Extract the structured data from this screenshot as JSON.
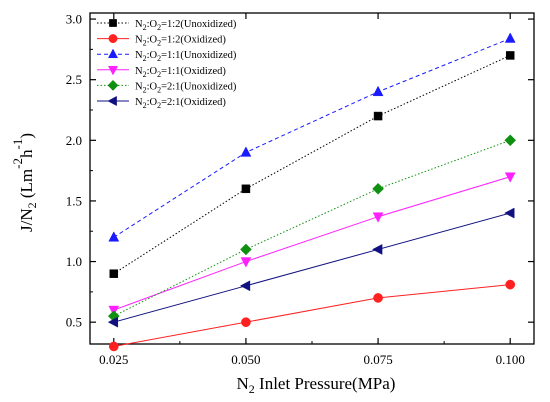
{
  "chart_data": {
    "type": "line",
    "x": [
      0.025,
      0.05,
      0.075,
      0.1
    ],
    "x_tick_labels": [
      "0.025",
      "0.050",
      "0.075",
      "0.100"
    ],
    "y_tick_labels": [
      "0.5",
      "1.0",
      "1.5",
      "2.0",
      "2.5",
      "3.0"
    ],
    "y_ticks": [
      0.5,
      1.0,
      1.5,
      2.0,
      2.5,
      3.0
    ],
    "xlim": [
      0.0205,
      0.1045
    ],
    "ylim": [
      0.32,
      3.05
    ],
    "xlabel": "N2 Inlet Pressure(MPa)",
    "ylabel": "J/N2 (Lm-2h-1)",
    "grid": false,
    "legend_position": "top-left",
    "series": [
      {
        "name": "N2:O2=1:2(Unoxidized)",
        "values": [
          0.9,
          1.6,
          2.2,
          2.7
        ],
        "color": "#000000",
        "marker": "square",
        "dash": "dotted"
      },
      {
        "name": "N2:O2=1:2(Oxidized)",
        "values": [
          0.3,
          0.5,
          0.7,
          0.81
        ],
        "color": "#ff2020",
        "marker": "circle",
        "dash": "solid"
      },
      {
        "name": "N2:O2=1:1(Unoxidized)",
        "values": [
          1.2,
          1.9,
          2.4,
          2.84
        ],
        "color": "#1a1aff",
        "marker": "triangle-up",
        "dash": "dashed"
      },
      {
        "name": "N2:O2=1:1(Oxidized)",
        "values": [
          0.6,
          1.0,
          1.37,
          1.7
        ],
        "color": "#ff20ff",
        "marker": "triangle-down",
        "dash": "solid"
      },
      {
        "name": "N2:O2=2:1(Unoxidized)",
        "values": [
          0.55,
          1.1,
          1.6,
          2.0
        ],
        "color": "#109010",
        "marker": "diamond",
        "dash": "dotted"
      },
      {
        "name": "N2:O2=2:1(Oxidized)",
        "values": [
          0.5,
          0.8,
          1.1,
          1.4
        ],
        "color": "#101080",
        "marker": "triangle-left",
        "dash": "solid"
      }
    ]
  }
}
